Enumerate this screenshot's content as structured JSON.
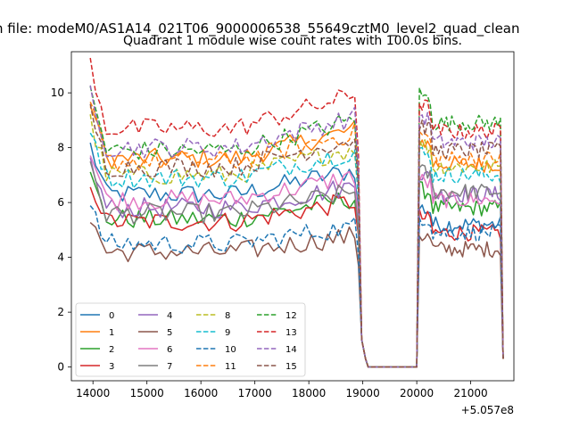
{
  "figure": {
    "suptitle": "n file: modeM0/AS1A14_021T06_9000006538_55649cztM0_level2_quad_clean"
  },
  "chart_data": {
    "type": "line",
    "title": "Quadrant 1 module wise count rates with 100.0s bins.",
    "xlabel": "",
    "ylabel": "",
    "x_offset_label": "+5.057e8",
    "xlim": [
      13600,
      21800
    ],
    "ylim": [
      -0.5,
      11.5
    ],
    "xticks": [
      14000,
      15000,
      16000,
      17000,
      18000,
      19000,
      20000,
      21000
    ],
    "yticks": [
      0,
      2,
      4,
      6,
      8,
      10
    ],
    "legend_position": "lower-left",
    "segments": [
      {
        "x_start": 13950,
        "x_end": 18850
      },
      {
        "x_start": 20050,
        "x_end": 21550
      }
    ],
    "gap": {
      "x_start": 19100,
      "x_end": 20000,
      "value": 0
    },
    "series": [
      {
        "name": "0",
        "color": "#1f77b4",
        "style": "solid",
        "level": [
          6.3,
          5.2
        ]
      },
      {
        "name": "1",
        "color": "#ff7f0e",
        "style": "solid",
        "level": [
          7.6,
          7.4
        ]
      },
      {
        "name": "2",
        "color": "#2ca02c",
        "style": "solid",
        "level": [
          5.4,
          5.8
        ]
      },
      {
        "name": "3",
        "color": "#d62728",
        "style": "solid",
        "level": [
          5.3,
          4.9
        ]
      },
      {
        "name": "4",
        "color": "#9467bd",
        "style": "solid",
        "level": [
          5.8,
          6.3
        ]
      },
      {
        "name": "5",
        "color": "#8c564b",
        "style": "solid",
        "level": [
          4.2,
          4.3
        ]
      },
      {
        "name": "6",
        "color": "#e377c2",
        "style": "solid",
        "level": [
          6.1,
          6.1
        ]
      },
      {
        "name": "7",
        "color": "#7f7f7f",
        "style": "solid",
        "level": [
          5.6,
          6.4
        ]
      },
      {
        "name": "8",
        "color": "#bcbd22",
        "style": "dashed",
        "level": [
          7.0,
          7.3
        ]
      },
      {
        "name": "9",
        "color": "#17becf",
        "style": "dashed",
        "level": [
          6.9,
          7.0
        ]
      },
      {
        "name": "10",
        "color": "#1f77b4",
        "style": "dashed",
        "level": [
          4.5,
          4.9
        ]
      },
      {
        "name": "11",
        "color": "#ff7f0e",
        "style": "dashed",
        "level": [
          7.5,
          7.6
        ]
      },
      {
        "name": "12",
        "color": "#2ca02c",
        "style": "dashed",
        "level": [
          7.9,
          8.9
        ]
      },
      {
        "name": "13",
        "color": "#d62728",
        "style": "dashed",
        "level": [
          8.7,
          8.6
        ]
      },
      {
        "name": "14",
        "color": "#9467bd",
        "style": "dashed",
        "level": [
          8.0,
          8.2
        ]
      },
      {
        "name": "15",
        "color": "#8c564b",
        "style": "dashed",
        "level": [
          7.3,
          7.9
        ]
      }
    ]
  }
}
